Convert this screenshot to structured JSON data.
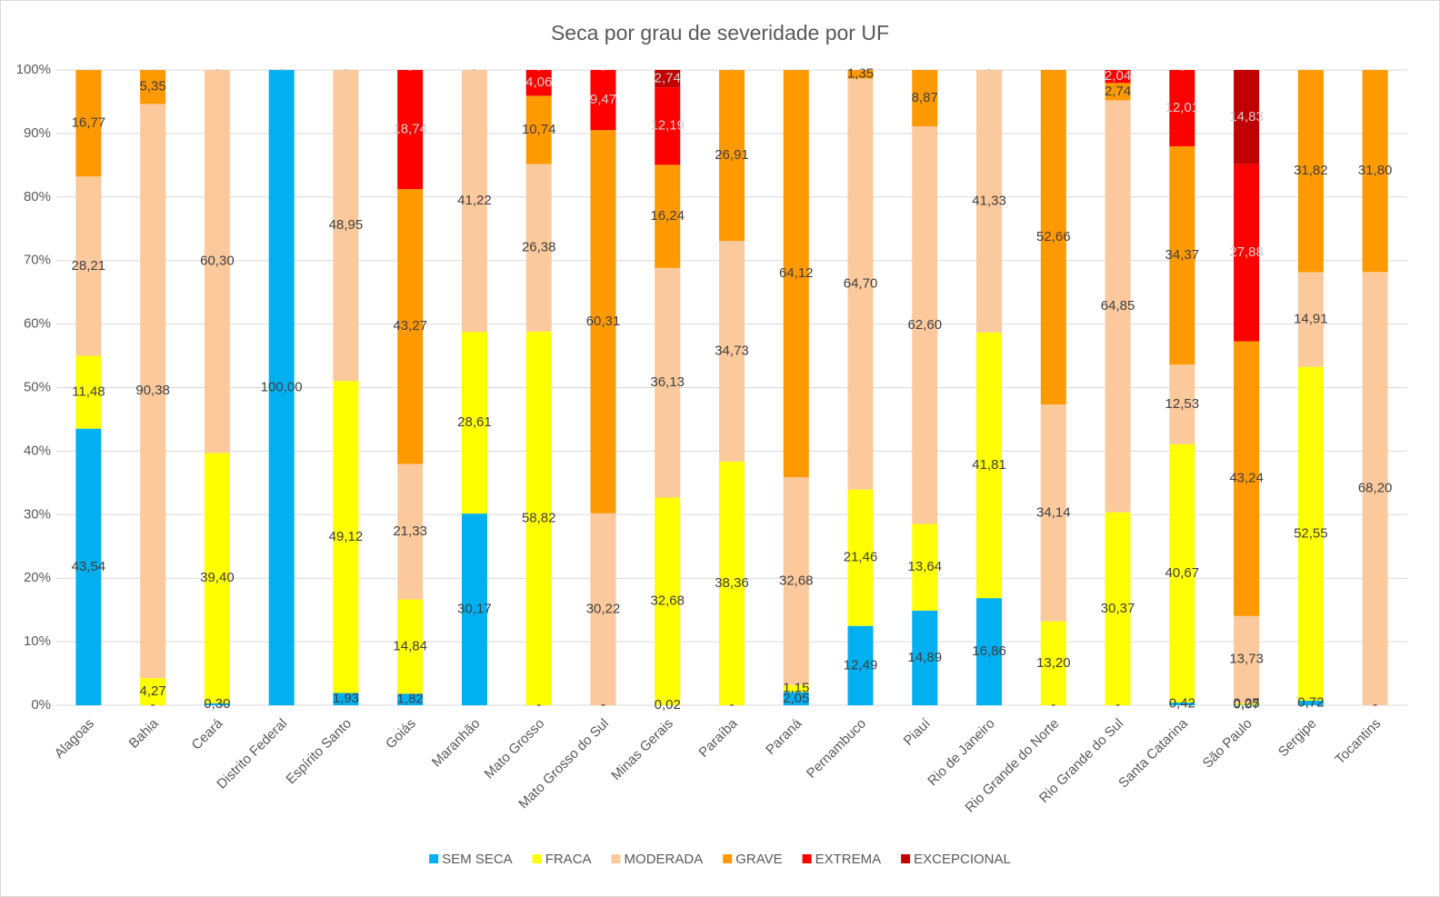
{
  "chart_data": {
    "type": "bar",
    "stacked": "percent",
    "title": "Seca por grau de severidade por UF",
    "categories": [
      "Alagoas",
      "Bahia",
      "Ceará",
      "Distrito Federal",
      "Espírito Santo",
      "Goiás",
      "Maranhão",
      "Mato Grosso",
      "Mato Grosso do Sul",
      "Minas Gerais",
      "Paraíba",
      "Paraná",
      "Pernambuco",
      "Piauí",
      "Rio de Janeiro",
      "Rio Grande do Norte",
      "Rio Grande do Sul",
      "Santa Catarina",
      "São Paulo",
      "Sergipe",
      "Tocantins"
    ],
    "series": [
      {
        "name": "SEM SECA",
        "color": "#00b0f0",
        "values": [
          43.54,
          0,
          0.3,
          100,
          1.93,
          1.82,
          30.17,
          0,
          0,
          0.02,
          0,
          2.05,
          12.49,
          14.89,
          16.86,
          0,
          0,
          0.42,
          0.07,
          0.72,
          0
        ],
        "value_labels": [
          "43,54",
          "-",
          "0,30",
          "100,00",
          "1,93",
          "1,82",
          "30,17",
          "-",
          "-",
          "0,02",
          "-",
          "2,05",
          "12,49",
          "14,89",
          "16,86",
          "-",
          "-",
          "0,42",
          "0,07",
          "0,72",
          "-"
        ]
      },
      {
        "name": "FRACA",
        "color": "#ffff00",
        "values": [
          11.48,
          4.27,
          39.4,
          0,
          49.12,
          14.84,
          28.61,
          58.82,
          0,
          32.68,
          38.36,
          1.15,
          21.46,
          13.64,
          41.81,
          13.2,
          30.37,
          40.67,
          0.25,
          52.55,
          0
        ],
        "value_labels": [
          "11,48",
          "4,27",
          "39,40",
          "-",
          "49,12",
          "14,84",
          "28,61",
          "58,82",
          "-",
          "32,68",
          "38,36",
          "1,15",
          "21,46",
          "13,64",
          "41,81",
          "13,20",
          "30,37",
          "40,67",
          "0,25",
          "52,55",
          "-"
        ]
      },
      {
        "name": "MODERADA",
        "color": "#fbc99c",
        "values": [
          28.21,
          90.38,
          60.3,
          0,
          48.95,
          21.33,
          41.22,
          26.38,
          30.22,
          36.13,
          34.73,
          32.68,
          64.7,
          62.6,
          41.33,
          34.14,
          64.85,
          12.53,
          13.73,
          14.91,
          68.2
        ],
        "value_labels": [
          "28,21",
          "90,38",
          "60,30",
          "-",
          "48,95",
          "21,33",
          "41,22",
          "26,38",
          "30,22",
          "36,13",
          "34,73",
          "32,68",
          "64,70",
          "62,60",
          "41,33",
          "34,14",
          "64,85",
          "12,53",
          "13,73",
          "14,91",
          "68,20"
        ]
      },
      {
        "name": "GRAVE",
        "color": "#ff9900",
        "values": [
          16.77,
          5.35,
          0,
          0,
          0,
          43.27,
          0,
          10.74,
          60.31,
          16.24,
          26.91,
          64.12,
          1.35,
          8.87,
          0,
          52.66,
          2.74,
          34.37,
          43.24,
          31.82,
          31.8
        ],
        "value_labels": [
          "16,77",
          "5,35",
          "-",
          "-",
          "-",
          "43,27",
          "-",
          "10,74",
          "60,31",
          "16,24",
          "26,91",
          "64,12",
          "1,35",
          "8,87",
          "-",
          "52,66",
          "2,74",
          "34,37",
          "43,24",
          "31,82",
          "31,80"
        ]
      },
      {
        "name": "EXTREMA",
        "color": "#ff0000",
        "values": [
          0,
          0,
          0,
          0,
          0,
          18.74,
          0,
          4.06,
          9.47,
          12.19,
          0,
          0,
          0,
          0,
          0,
          0,
          2.04,
          12.01,
          27.88,
          0,
          0
        ],
        "value_labels": [
          "-",
          "-",
          "-",
          "-",
          "-",
          "18,74",
          "-",
          "4,06",
          "9,47",
          "12,19",
          "-",
          "-",
          "-",
          "-",
          "-",
          "-",
          "2,04",
          "12,01",
          "27,88",
          "-",
          "-"
        ]
      },
      {
        "name": "EXCEPCIONAL",
        "color": "#c00000",
        "values": [
          0,
          0,
          0,
          0,
          0,
          0,
          0,
          0,
          0,
          2.74,
          0,
          0,
          0,
          0,
          0,
          0,
          0,
          0,
          14.83,
          0,
          0
        ],
        "value_labels": [
          "-",
          "-",
          "-",
          "-",
          "-",
          "-",
          "-",
          "-",
          "-",
          "2,74",
          "-",
          "-",
          "-",
          "-",
          "-",
          "-",
          "-",
          "-",
          "14,83",
          "-",
          "-"
        ]
      }
    ],
    "ylim": [
      0,
      100
    ],
    "yticks": [
      {
        "value": 0,
        "label": "0%"
      },
      {
        "value": 10,
        "label": "10%"
      },
      {
        "value": 20,
        "label": "20%"
      },
      {
        "value": 30,
        "label": "30%"
      },
      {
        "value": 40,
        "label": "40%"
      },
      {
        "value": 50,
        "label": "50%"
      },
      {
        "value": 60,
        "label": "60%"
      },
      {
        "value": 70,
        "label": "70%"
      },
      {
        "value": 80,
        "label": "80%"
      },
      {
        "value": 90,
        "label": "90%"
      },
      {
        "value": 100,
        "label": "100%"
      }
    ],
    "grid": true,
    "legend": "bottom"
  }
}
